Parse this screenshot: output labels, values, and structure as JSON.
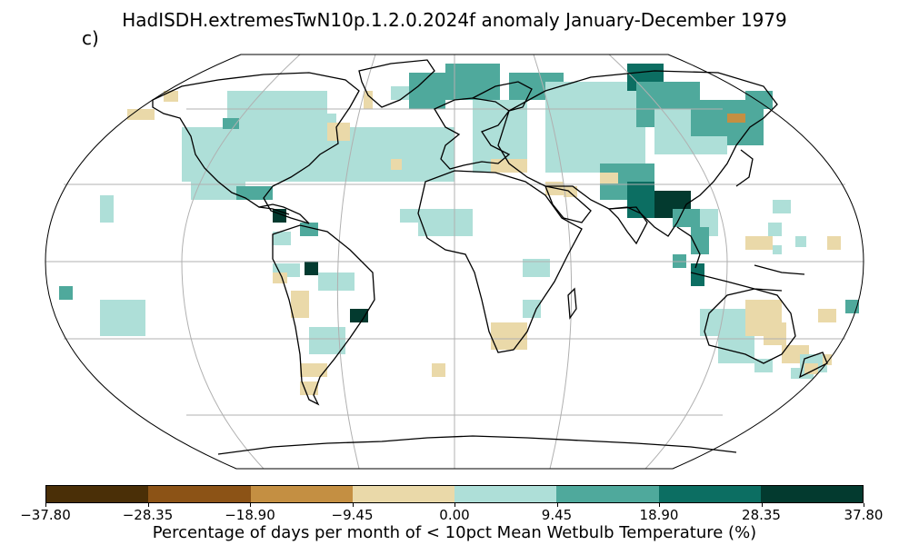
{
  "title": "HadISDH.extremesTwN10p.1.2.0.2024f anomaly January-December 1979",
  "panel_label": "c)",
  "colorbar": {
    "label": "Percentage of days per month of < 10pct Mean Wetbulb Temperature (%)",
    "ticks": [
      "−37.80",
      "−28.35",
      "−18.90",
      "−9.45",
      "0.00",
      "9.45",
      "18.90",
      "28.35",
      "37.80"
    ],
    "colors": [
      "#4a2f07",
      "#8c5316",
      "#c48f42",
      "#ead9a9",
      "#aedfd8",
      "#4fa99c",
      "#0c6e62",
      "#033a2f"
    ]
  },
  "map": {
    "projection": "Robinson",
    "gridlines": true
  }
}
